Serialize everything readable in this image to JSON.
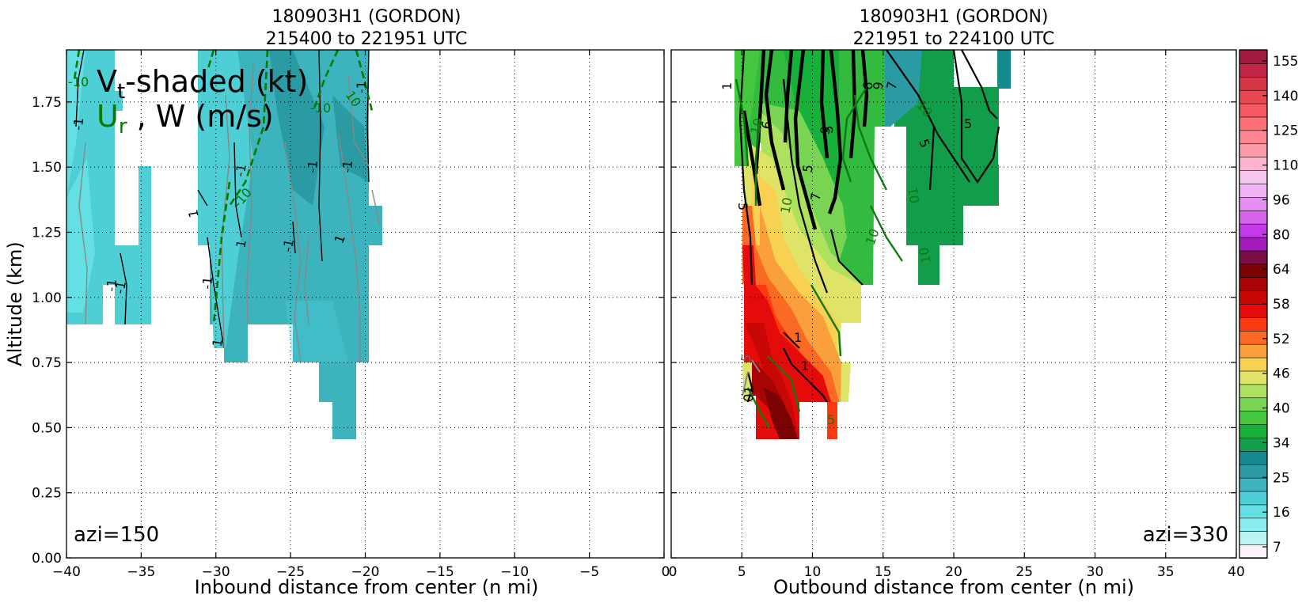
{
  "chart_data": [
    {
      "type": "heatmap",
      "panel": "left",
      "title_line1": "180903H1 (GORDON)",
      "title_line2": "215400 to 221951 UTC",
      "xlabel": "Inbound distance from center (n mi)",
      "ylabel": "Altitude (km)",
      "xlim": [
        -40,
        0
      ],
      "ylim": [
        0,
        1.95
      ],
      "xticks": [
        "−40",
        "−35",
        "−30",
        "−25",
        "−20",
        "−15",
        "−10",
        "−5",
        "0"
      ],
      "yticks": [
        "0.00",
        "0.25",
        "0.50",
        "0.75",
        "1.00",
        "1.25",
        "1.50",
        "1.75"
      ],
      "grid": true,
      "legend_line1": "Vt-shaded (kt)",
      "legend_line2_ur": "Ur",
      "legend_line2_rest": " , W (m/s)",
      "azimuth_label": "azi=150",
      "shaded_regions": [
        {
          "color": "#4ecfd6",
          "x": [
            -40,
            -34
          ],
          "y": [
            0.9,
            1.95
          ]
        },
        {
          "color": "#3cb3bd",
          "x": [
            -31,
            -19
          ],
          "y": [
            0.75,
            1.95
          ]
        },
        {
          "color": "#3cb3bd",
          "x": [
            -24,
            -20
          ],
          "y": [
            0.45,
            0.75
          ]
        }
      ],
      "contour_labels": [
        "-10",
        "-1",
        "-1",
        "-1",
        "-1",
        "-1",
        "-1",
        "-10",
        "-10",
        "-1",
        "1",
        "1",
        "-1",
        "-1",
        "1"
      ]
    },
    {
      "type": "heatmap",
      "panel": "right",
      "title_line1": "180903H1 (GORDON)",
      "title_line2": "221951 to 224100 UTC",
      "xlabel": "Outbound distance from center (n mi)",
      "xlim": [
        0,
        40
      ],
      "ylim": [
        0,
        1.95
      ],
      "xticks": [
        "0",
        "5",
        "10",
        "15",
        "20",
        "25",
        "30",
        "35",
        "40"
      ],
      "grid": true,
      "azimuth_label": "azi=330",
      "shaded_regions": [
        {
          "color": "#119d4a",
          "x": [
            15,
            24
          ],
          "y": [
            1.05,
            1.95
          ]
        },
        {
          "color": "#33bb3f",
          "x": [
            4.5,
            15
          ],
          "y": [
            1.05,
            1.95
          ]
        },
        {
          "color": "#f7d250",
          "x": [
            6,
            13
          ],
          "y": [
            0.6,
            1.3
          ]
        },
        {
          "color": "#fb3a10",
          "x": [
            6,
            12
          ],
          "y": [
            0.45,
            0.95
          ]
        }
      ],
      "contour_labels": [
        "1",
        "6",
        "5",
        "5",
        "6",
        "9",
        "7",
        "10",
        "5",
        "5",
        "10",
        "01",
        "10",
        "1",
        "1",
        "5",
        "5",
        "5",
        "7",
        "10",
        "01"
      ]
    },
    {
      "type": "colorbar",
      "tick_labels": [
        "155",
        "140",
        "125",
        "110",
        "96",
        "80",
        "64",
        "58",
        "52",
        "46",
        "40",
        "34",
        "25",
        "16",
        "7"
      ],
      "colors": [
        "#fdf2fa",
        "#b9f5f4",
        "#8aeded",
        "#64dfe4",
        "#4ecfd6",
        "#3cb3bd",
        "#2a9ba3",
        "#14898f",
        "#119d4a",
        "#16b03a",
        "#45c63f",
        "#7ad454",
        "#aee15e",
        "#dfe469",
        "#f8d052",
        "#f9a03c",
        "#fb6a24",
        "#fb3a10",
        "#e60b0b",
        "#c80707",
        "#a80404",
        "#7b0202",
        "#7a0d44",
        "#a21bbf",
        "#c53ae8",
        "#d764ed",
        "#e48ff1",
        "#efb3f4",
        "#f7c6ee",
        "#fdb4cf",
        "#fd9ba8",
        "#fd8690",
        "#fb7074",
        "#f45a60",
        "#e84651",
        "#d83448",
        "#c12445",
        "#a31a3f"
      ]
    }
  ]
}
